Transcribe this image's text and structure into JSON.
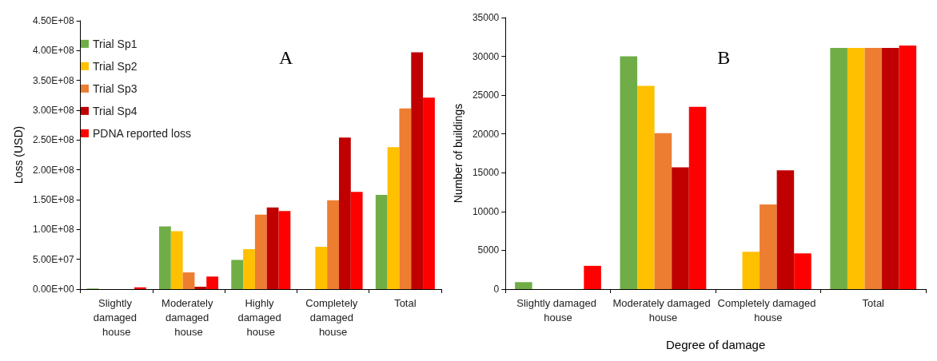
{
  "chart_data": [
    {
      "type": "bar",
      "ylabel": "Loss (USD)",
      "annotations": [
        "A"
      ],
      "categories": [
        "Slightly damaged house",
        "Moderately damaged house",
        "Highly damaged house",
        "Completely damaged house",
        "Total"
      ],
      "series": [
        {
          "name": "Trial Sp1",
          "color": "#70ad47",
          "values": [
            1000000,
            105000000,
            49000000,
            0,
            158000000
          ]
        },
        {
          "name": "Trial Sp2",
          "color": "#ffc000",
          "values": [
            0,
            97000000,
            67000000,
            71000000,
            238000000
          ]
        },
        {
          "name": "Trial Sp3",
          "color": "#ed7d31",
          "values": [
            0,
            28000000,
            125000000,
            149000000,
            303000000
          ]
        },
        {
          "name": "Trial Sp4",
          "color": "#c00000",
          "values": [
            0,
            4000000,
            137000000,
            254000000,
            397000000
          ]
        },
        {
          "name": "PDNA reported loss",
          "color": "#ff0000",
          "values": [
            3000000,
            21000000,
            131000000,
            163000000,
            321000000
          ]
        }
      ],
      "ylim": [
        0,
        450000000
      ],
      "yticks": [
        {
          "value": 0,
          "label": "0.00E+00"
        },
        {
          "value": 50000000,
          "label": "5.00E+07"
        },
        {
          "value": 100000000,
          "label": "1.00E+08"
        },
        {
          "value": 150000000,
          "label": "1.50E+08"
        },
        {
          "value": 200000000,
          "label": "2.00E+08"
        },
        {
          "value": 250000000,
          "label": "2.50E+08"
        },
        {
          "value": 300000000,
          "label": "3.00E+08"
        },
        {
          "value": 350000000,
          "label": "3.50E+08"
        },
        {
          "value": 400000000,
          "label": "4.00E+08"
        },
        {
          "value": 450000000,
          "label": "4.50E+08"
        }
      ],
      "grid": false,
      "legend": "top left"
    },
    {
      "type": "bar",
      "xlabel": "Degree of damage",
      "ylabel": "Number of buildings",
      "annotations": [
        "B"
      ],
      "categories": [
        "Slightly damaged house",
        "Moderately damaged house",
        "Completely damaged house",
        "Total"
      ],
      "series": [
        {
          "color": "#70ad47",
          "values": [
            900,
            30000,
            0,
            31100
          ]
        },
        {
          "color": "#ffc000",
          "values": [
            0,
            26200,
            4800,
            31100
          ]
        },
        {
          "color": "#ed7d31",
          "values": [
            0,
            20100,
            10900,
            31100
          ]
        },
        {
          "color": "#c00000",
          "values": [
            0,
            15700,
            15300,
            31100
          ]
        },
        {
          "color": "#ff0000",
          "values": [
            3000,
            23500,
            4600,
            31400
          ]
        }
      ],
      "ylim": [
        0,
        35000
      ],
      "yticks": [
        0,
        5000,
        10000,
        15000,
        20000,
        25000,
        30000,
        35000
      ],
      "grid": false,
      "legend": false
    }
  ]
}
